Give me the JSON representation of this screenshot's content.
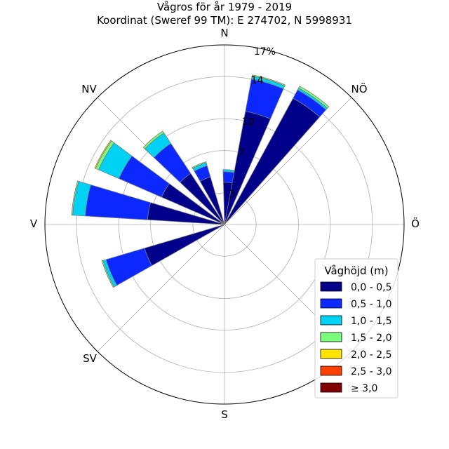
{
  "chart_data": {
    "type": "windrose",
    "title": "Vågros för år 1979 - 2019",
    "subtitle": "Koordinat (Sweref 99 TM): E 274702, N 5998931",
    "directions": [
      "N",
      "NÖ",
      "Ö",
      "SV",
      "S",
      "V",
      "NV"
    ],
    "direction_labels": {
      "n": "N",
      "ne": "NÖ",
      "e": "Ö",
      "se": "",
      "s": "S",
      "sw": "SV",
      "w": "V",
      "nw": "NV"
    },
    "radial_ticks": [
      3,
      7,
      10,
      14
    ],
    "radial_max_label": "17%",
    "r_max": 17,
    "legend_title": "Våghöjd (m)",
    "bins": [
      {
        "label": "0,0 - 0,5",
        "color": "#00008b"
      },
      {
        "label": "0,5 - 1,0",
        "color": "#0a28ff"
      },
      {
        "label": "1,0 - 1,5",
        "color": "#00d2f5"
      },
      {
        "label": "1,5 - 2,0",
        "color": "#7bff7b"
      },
      {
        "label": "2,0 - 2,5",
        "color": "#ffe400"
      },
      {
        "label": "2,5 - 3,0",
        "color": "#ff4000"
      },
      {
        "label": "≥ 3,0",
        "color": "#800000"
      }
    ],
    "sectors": [
      {
        "direction_deg": 5,
        "values": [
          4.0,
          1.0,
          0.2,
          0,
          0,
          0,
          0
        ]
      },
      {
        "direction_deg": 17,
        "values": [
          10.9,
          3.1,
          0.3,
          0.1,
          0,
          0,
          0
        ]
      },
      {
        "direction_deg": 35,
        "values": [
          13.6,
          0.9,
          0.2,
          0.2,
          0,
          0,
          0
        ]
      },
      {
        "direction_deg": 337,
        "values": [
          4.7,
          1.1,
          0.3,
          0.1,
          0,
          0,
          0
        ]
      },
      {
        "direction_deg": 320,
        "values": [
          5.8,
          3.4,
          1.2,
          0.2,
          0,
          0,
          0
        ]
      },
      {
        "direction_deg": 300,
        "values": [
          6.5,
          4.4,
          2.1,
          0.3,
          0.1,
          0,
          0
        ]
      },
      {
        "direction_deg": 280,
        "values": [
          7.3,
          5.9,
          1.2,
          0.1,
          0,
          0,
          0
        ]
      },
      {
        "direction_deg": 247,
        "values": [
          7.9,
          3.8,
          0.3,
          0.1,
          0,
          0,
          0
        ]
      }
    ]
  }
}
